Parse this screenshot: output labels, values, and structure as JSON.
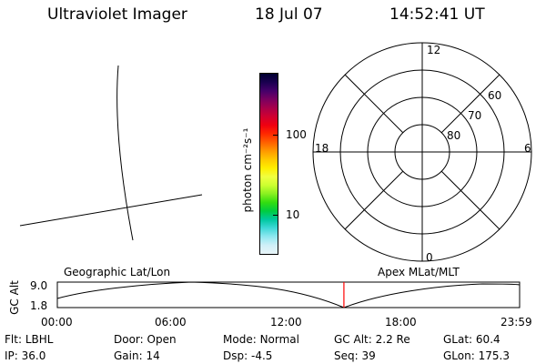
{
  "header": {
    "title": "Ultraviolet Imager",
    "date": "18 Jul 07",
    "time": "14:52:41 UT"
  },
  "colorbar": {
    "unit_label": "photon cm⁻²s⁻¹",
    "ticks": [
      "100",
      "10"
    ],
    "colors": [
      "#000030",
      "#1a0050",
      "#45006a",
      "#7a0060",
      "#a8004a",
      "#d00030",
      "#f00010",
      "#ff2800",
      "#ff6000",
      "#ff9800",
      "#ffc800",
      "#ffee00",
      "#f0ff40",
      "#ccff30",
      "#88f020",
      "#33dd10",
      "#00cc40",
      "#00c8a0",
      "#40d8d8",
      "#90e8f0",
      "#d0f0f8",
      "#e8f4f8"
    ]
  },
  "polar": {
    "mlt_labels": [
      "12",
      "18",
      "6",
      "0"
    ],
    "lat_labels": [
      "60",
      "70",
      "80"
    ]
  },
  "timeline": {
    "yaxis_label": "GC Alt",
    "yticks": [
      "9.0",
      "1.8"
    ],
    "left_label": "Geographic Lat/Lon",
    "right_label": "Apex MLat/MLT",
    "xticks": [
      "00:00",
      "06:00",
      "12:00",
      "18:00",
      "23:59"
    ],
    "marker_time_hours": 14.878,
    "marker_color": "#ff0000"
  },
  "status": {
    "rows": [
      [
        {
          "label": "Flt:",
          "value": "LBHL"
        },
        {
          "label": "Door:",
          "value": "Open"
        },
        {
          "label": "Mode:",
          "value": "Normal"
        },
        {
          "label": "GC Alt:",
          "value": "2.2 Re"
        },
        {
          "label": "GLat:",
          "value": "60.4"
        }
      ],
      [
        {
          "label": "IP:",
          "value": "36.0"
        },
        {
          "label": "Gain:",
          "value": "14"
        },
        {
          "label": "Dsp:",
          "value": "-4.5"
        },
        {
          "label": "Seq:",
          "value": "39"
        },
        {
          "label": "GLon:",
          "value": "175.3"
        }
      ]
    ]
  }
}
